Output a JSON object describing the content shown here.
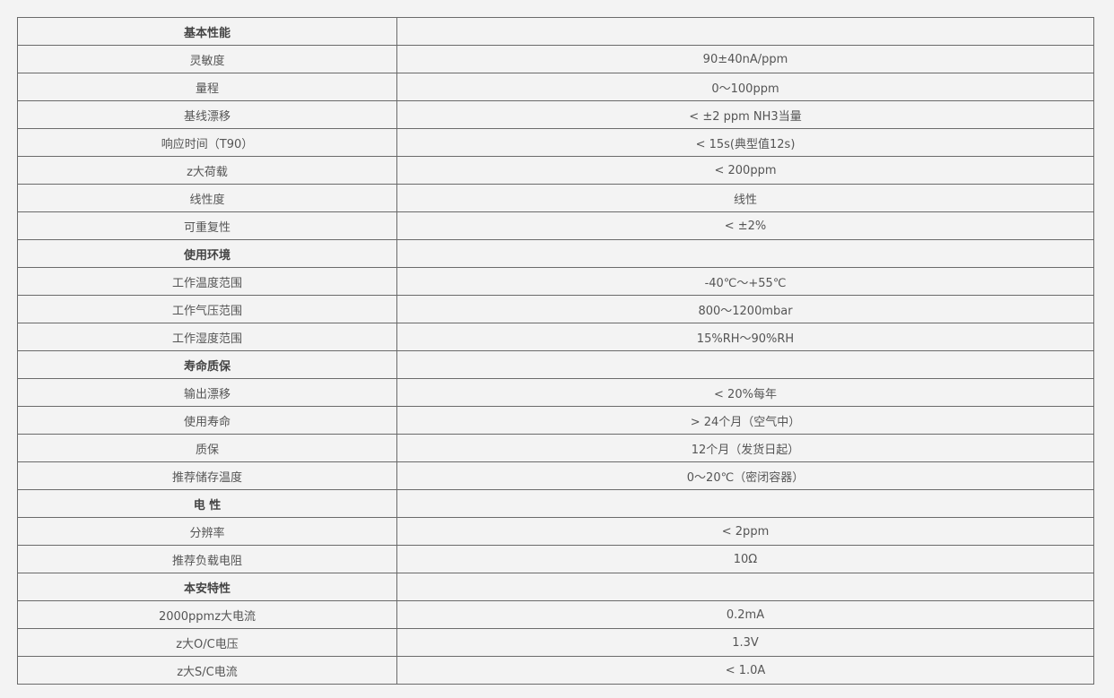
{
  "rows": [
    {
      "label": "基本性能",
      "value": "",
      "section": true
    },
    {
      "label": "灵敏度",
      "value": "90±40nA/ppm"
    },
    {
      "label": "量程",
      "value": "0～100ppm"
    },
    {
      "label": "基线漂移",
      "value": "< ±2 ppm NH3当量"
    },
    {
      "label": "响应时间（T90）",
      "value": "< 15s(典型值12s)"
    },
    {
      "label": "z大荷载",
      "value": "< 200ppm"
    },
    {
      "label": "线性度",
      "value": "线性"
    },
    {
      "label": "可重复性",
      "value": "< ±2%"
    },
    {
      "label": "使用环境",
      "value": "",
      "section": true
    },
    {
      "label": "工作温度范围",
      "value": "-40℃～+55℃"
    },
    {
      "label": "工作气压范围",
      "value": "800～1200mbar"
    },
    {
      "label": "工作湿度范围",
      "value": "15%RH～90%RH"
    },
    {
      "label": "寿命质保",
      "value": "",
      "section": true
    },
    {
      "label": "输出漂移",
      "value": "< 20%每年"
    },
    {
      "label": "使用寿命",
      "value": "> 24个月（空气中）"
    },
    {
      "label": "质保",
      "value": "12个月（发货日起）"
    },
    {
      "label": "推荐储存温度",
      "value": "0～20℃（密闭容器）"
    },
    {
      "label": "电 性",
      "value": "",
      "section": true
    },
    {
      "label": "分辨率",
      "value": "< 2ppm"
    },
    {
      "label": "推荐负载电阻",
      "value": "10Ω"
    },
    {
      "label": "本安特性",
      "value": "",
      "section": true
    },
    {
      "label": "2000ppmz大电流",
      "value": "0.2mA"
    },
    {
      "label": "z大O/C电压",
      "value": "1.3V"
    },
    {
      "label": "z大S/C电流",
      "value": "< 1.0A"
    }
  ]
}
